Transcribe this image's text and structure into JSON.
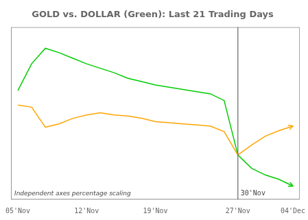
{
  "chart_data": {
    "type": "line",
    "title": "GOLD vs. DOLLAR (Green): Last 21 Trading Days",
    "categories": [
      "05'Nov",
      null,
      null,
      null,
      null,
      "12'Nov",
      null,
      null,
      null,
      null,
      "19'Nov",
      null,
      null,
      null,
      null,
      null,
      "27'Nov",
      null,
      null,
      null,
      "04'Dec"
    ],
    "series": [
      {
        "color": "#FFA500",
        "values": [
          4.5,
          4.3,
          2.5,
          2.8,
          3.3,
          3.6,
          3.8,
          3.6,
          3.5,
          3.3,
          3.0,
          2.9,
          2.8,
          2.7,
          2.6,
          2.1,
          0.0,
          0.9,
          1.7,
          2.2,
          2.6
        ]
      },
      {
        "color": "#00CC00",
        "values": [
          5.8,
          8.2,
          9.6,
          9.2,
          8.7,
          8.2,
          7.8,
          7.4,
          6.9,
          6.6,
          6.3,
          6.1,
          5.9,
          5.7,
          5.5,
          4.9,
          0.0,
          -1.2,
          -1.8,
          -2.2,
          -2.8
        ]
      }
    ],
    "ylim": [
      -4.0,
      11.5
    ],
    "tick_labels": "x",
    "grid": false,
    "annotations": [
      {
        "text": "30'Nov",
        "x": 16
      },
      {
        "text": "Independent axes percentage scaling"
      }
    ]
  }
}
